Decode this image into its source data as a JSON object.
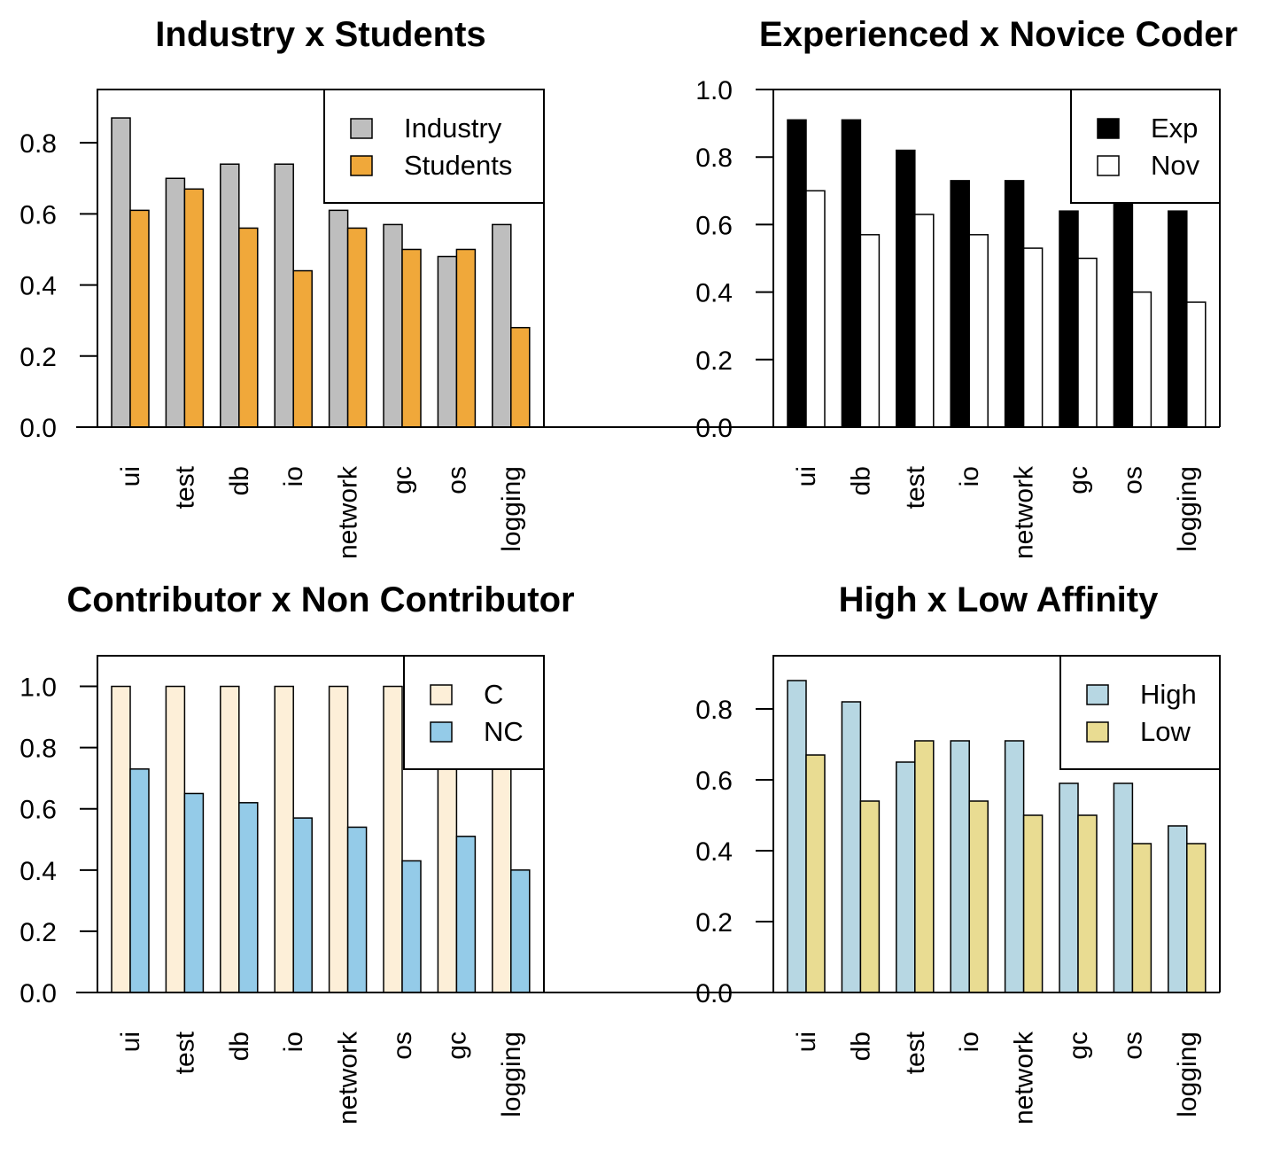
{
  "chart_data": [
    {
      "type": "bar",
      "title": "Industry x Students",
      "categories": [
        "ui",
        "test",
        "db",
        "io",
        "network",
        "gc",
        "os",
        "logging"
      ],
      "series": [
        {
          "name": "Industry",
          "color": "#bebebe",
          "values": [
            0.87,
            0.7,
            0.74,
            0.74,
            0.61,
            0.57,
            0.48,
            0.57
          ]
        },
        {
          "name": "Students",
          "color": "#f0a83a",
          "values": [
            0.61,
            0.67,
            0.56,
            0.44,
            0.56,
            0.5,
            0.5,
            0.28
          ]
        }
      ],
      "ylim": [
        0,
        0.95
      ],
      "yticks": [
        "0.0",
        "0.2",
        "0.4",
        "0.6",
        "0.8"
      ],
      "legend_position": "top-right",
      "xlabel": "",
      "ylabel": ""
    },
    {
      "type": "bar",
      "title": "Experienced x Novice Coder",
      "categories": [
        "ui",
        "db",
        "test",
        "io",
        "network",
        "gc",
        "os",
        "logging"
      ],
      "series": [
        {
          "name": "Exp",
          "color": "#000000",
          "values": [
            0.91,
            0.91,
            0.82,
            0.73,
            0.73,
            0.64,
            0.7,
            0.64
          ]
        },
        {
          "name": "Nov",
          "color": "#ffffff",
          "values": [
            0.7,
            0.57,
            0.63,
            0.57,
            0.53,
            0.5,
            0.4,
            0.37
          ]
        }
      ],
      "ylim": [
        0,
        1.0
      ],
      "yticks": [
        "0.0",
        "0.2",
        "0.4",
        "0.6",
        "0.8",
        "1.0"
      ],
      "legend_position": "top-right",
      "xlabel": "",
      "ylabel": ""
    },
    {
      "type": "bar",
      "title": "Contributor x Non Contributor",
      "categories": [
        "ui",
        "test",
        "db",
        "io",
        "network",
        "os",
        "gc",
        "logging"
      ],
      "series": [
        {
          "name": "C",
          "color": "#fdefd8",
          "values": [
            1.0,
            1.0,
            1.0,
            1.0,
            1.0,
            1.0,
            1.0,
            1.0
          ]
        },
        {
          "name": "NC",
          "color": "#94cbe8",
          "values": [
            0.73,
            0.65,
            0.62,
            0.57,
            0.54,
            0.43,
            0.51,
            0.4
          ]
        }
      ],
      "ylim": [
        0,
        1.1
      ],
      "yticks": [
        "0.0",
        "0.2",
        "0.4",
        "0.6",
        "0.8",
        "1.0"
      ],
      "legend_position": "top-right",
      "xlabel": "",
      "ylabel": ""
    },
    {
      "type": "bar",
      "title": "High x Low Affinity",
      "categories": [
        "ui",
        "db",
        "test",
        "io",
        "network",
        "gc",
        "os",
        "logging"
      ],
      "series": [
        {
          "name": "High",
          "color": "#b7d7e3",
          "values": [
            0.88,
            0.82,
            0.65,
            0.71,
            0.71,
            0.59,
            0.59,
            0.47
          ]
        },
        {
          "name": "Low",
          "color": "#e9dc92",
          "values": [
            0.67,
            0.54,
            0.71,
            0.54,
            0.5,
            0.5,
            0.42,
            0.42
          ]
        }
      ],
      "ylim": [
        0,
        0.95
      ],
      "yticks": [
        "0.0",
        "0.2",
        "0.4",
        "0.6",
        "0.8"
      ],
      "legend_position": "top-right",
      "xlabel": "",
      "ylabel": ""
    }
  ]
}
